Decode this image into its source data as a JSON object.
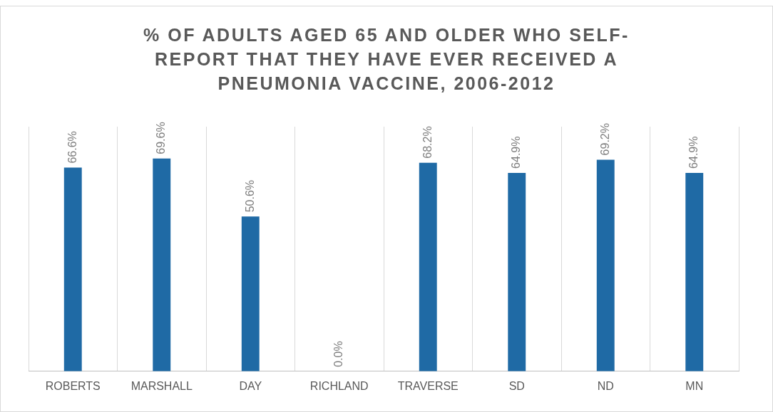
{
  "chart_data": {
    "type": "bar",
    "title": "% OF ADULTS AGED 65 AND OLDER WHO SELF-REPORT THAT THEY HAVE EVER RECEIVED A PNEUMONIA VACCINE, 2006-2012",
    "categories": [
      "ROBERTS",
      "MARSHALL",
      "DAY",
      "RICHLAND",
      "TRAVERSE",
      "SD",
      "ND",
      "MN"
    ],
    "values": [
      66.6,
      69.6,
      50.6,
      0.0,
      68.2,
      64.9,
      69.2,
      64.9
    ],
    "value_labels": [
      "66.6%",
      "69.6%",
      "50.6%",
      "0.0%",
      "68.2%",
      "64.9%",
      "69.2%",
      "64.9%"
    ],
    "color": "#1f6aa5",
    "ylim": [
      0,
      80
    ],
    "tick_labels": "x",
    "grid": "x",
    "legend": false
  }
}
